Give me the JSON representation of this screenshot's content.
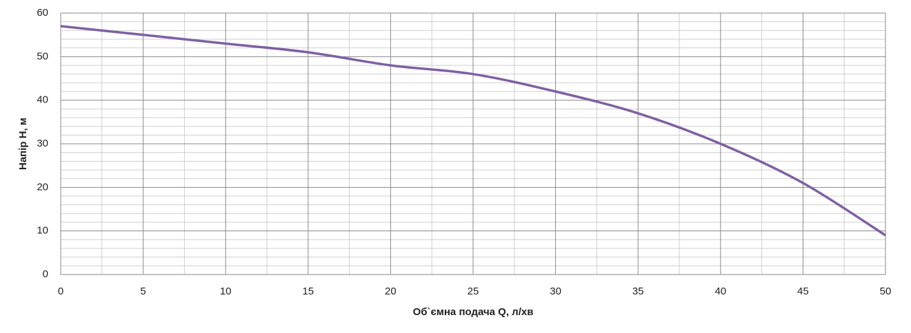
{
  "chart_data": {
    "type": "line",
    "xlabel": "Об`ємна подача Q, л/хв",
    "ylabel": "Напір H, м",
    "x": [
      0,
      5,
      10,
      15,
      20,
      25,
      30,
      35,
      40,
      45,
      50
    ],
    "series": [
      {
        "color": "#7f60a3",
        "values": [
          57,
          55,
          53,
          51,
          48,
          46,
          42,
          37,
          30,
          21,
          9
        ]
      }
    ],
    "xlim": [
      0,
      50
    ],
    "ylim": [
      0,
      60
    ],
    "xticks": [
      0,
      5,
      10,
      15,
      20,
      25,
      30,
      35,
      40,
      45,
      50
    ],
    "yticks": [
      0,
      10,
      20,
      30,
      40,
      50,
      60
    ],
    "xminorticks": [
      2.5,
      7.5,
      12.5,
      17.5,
      22.5,
      27.5,
      32.5,
      37.5,
      42.5,
      47.5
    ],
    "yminorticks": [
      2,
      4,
      6,
      8,
      12,
      14,
      16,
      18,
      22,
      24,
      26,
      28,
      32,
      34,
      36,
      38,
      42,
      44,
      46,
      48,
      52,
      54,
      56,
      58
    ],
    "grid": true
  }
}
